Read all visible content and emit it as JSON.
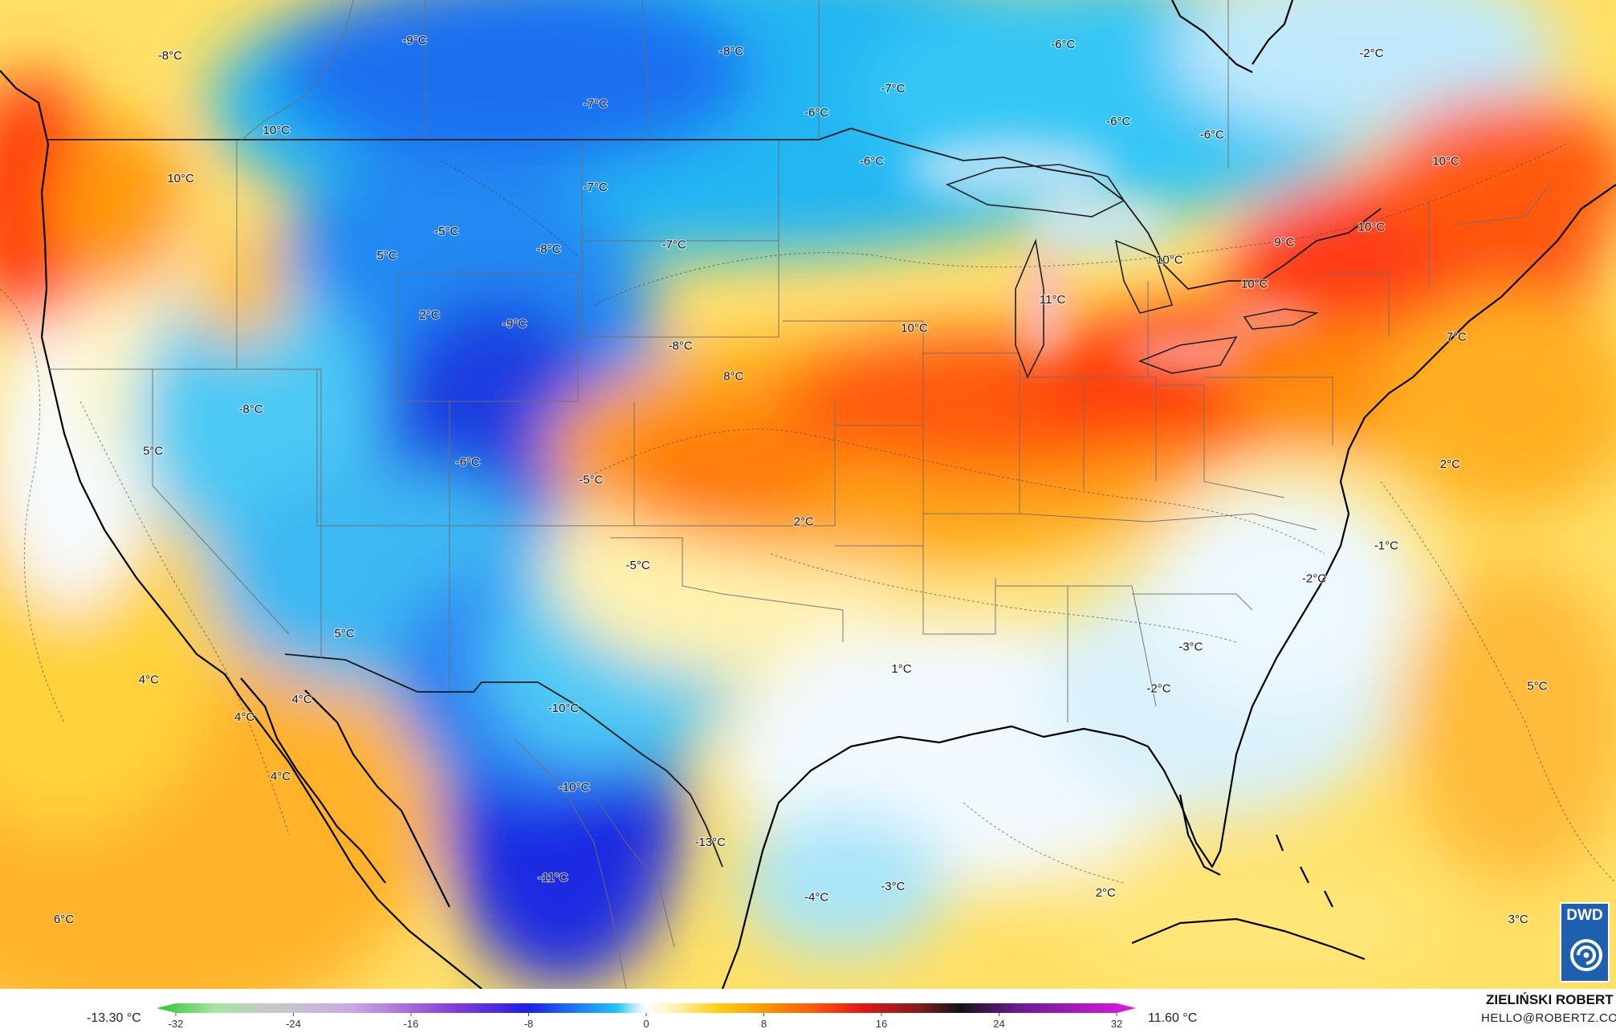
{
  "map": {
    "region": "contiguous-united-states-and-surroundings",
    "temperature_labels": [
      {
        "text": "-9°C",
        "lon": -116.5,
        "lat": 50.5
      },
      {
        "text": "-8°C",
        "lon": -128.0,
        "lat": 49.8
      },
      {
        "text": "-8°C",
        "lon": -101.6,
        "lat": 50.0
      },
      {
        "text": "-6°C",
        "lon": -86.0,
        "lat": 50.3
      },
      {
        "text": "-2°C",
        "lon": -71.5,
        "lat": 49.9
      },
      {
        "text": "-7°C",
        "lon": -94.0,
        "lat": 48.3
      },
      {
        "text": "-6°C",
        "lon": -97.6,
        "lat": 47.2
      },
      {
        "text": "-7°C",
        "lon": -108.0,
        "lat": 47.6
      },
      {
        "text": "-6°C",
        "lon": -79.0,
        "lat": 46.2
      },
      {
        "text": "-6°C",
        "lon": -83.4,
        "lat": 46.8
      },
      {
        "text": "10°C",
        "lon": -123.0,
        "lat": 46.4
      },
      {
        "text": "10°C",
        "lon": -127.5,
        "lat": 44.2
      },
      {
        "text": "-6°C",
        "lon": -95.0,
        "lat": 45.0
      },
      {
        "text": "10°C",
        "lon": -68.0,
        "lat": 45.0
      },
      {
        "text": "-7°C",
        "lon": -108.0,
        "lat": 43.8
      },
      {
        "text": "-5°C",
        "lon": -115.0,
        "lat": 41.8
      },
      {
        "text": "5°C",
        "lon": -117.8,
        "lat": 40.7
      },
      {
        "text": "-8°C",
        "lon": -110.2,
        "lat": 41.0
      },
      {
        "text": "-7°C",
        "lon": -104.3,
        "lat": 41.2
      },
      {
        "text": "10°C",
        "lon": -71.5,
        "lat": 42.0
      },
      {
        "text": "9°C",
        "lon": -75.6,
        "lat": 41.3
      },
      {
        "text": "10°C",
        "lon": -81.0,
        "lat": 40.5
      },
      {
        "text": "10°C",
        "lon": -77.0,
        "lat": 39.4
      },
      {
        "text": "11°C",
        "lon": -86.5,
        "lat": 38.7
      },
      {
        "text": "2°C",
        "lon": -115.8,
        "lat": 38.0
      },
      {
        "text": "-9°C",
        "lon": -111.8,
        "lat": 37.6
      },
      {
        "text": "10°C",
        "lon": -93.0,
        "lat": 37.4
      },
      {
        "text": "-8°C",
        "lon": -104.0,
        "lat": 36.6
      },
      {
        "text": "7°C",
        "lon": -67.5,
        "lat": 37.0
      },
      {
        "text": "8°C",
        "lon": -101.5,
        "lat": 35.2
      },
      {
        "text": "-8°C",
        "lon": -124.2,
        "lat": 33.7
      },
      {
        "text": "5°C",
        "lon": -128.8,
        "lat": 31.8
      },
      {
        "text": "-6°C",
        "lon": -114.0,
        "lat": 31.3
      },
      {
        "text": "-5°C",
        "lon": -108.2,
        "lat": 30.5
      },
      {
        "text": "2°C",
        "lon": -67.8,
        "lat": 31.2
      },
      {
        "text": "2°C",
        "lon": -98.2,
        "lat": 28.6
      },
      {
        "text": "-5°C",
        "lon": -106.0,
        "lat": 26.6
      },
      {
        "text": "-1°C",
        "lon": -70.8,
        "lat": 27.5
      },
      {
        "text": "-2°C",
        "lon": -74.2,
        "lat": 26.0
      },
      {
        "text": "5°C",
        "lon": -119.8,
        "lat": 23.5
      },
      {
        "text": "1°C",
        "lon": -93.6,
        "lat": 21.9
      },
      {
        "text": "-3°C",
        "lon": -80.0,
        "lat": 22.9
      },
      {
        "text": "4°C",
        "lon": -129.0,
        "lat": 21.4
      },
      {
        "text": "-2°C",
        "lon": -81.5,
        "lat": 21.0
      },
      {
        "text": "4°C",
        "lon": -121.8,
        "lat": 20.5
      },
      {
        "text": "5°C",
        "lon": -63.7,
        "lat": 21.1
      },
      {
        "text": "4°C",
        "lon": -124.5,
        "lat": 19.7
      },
      {
        "text": "-10°C",
        "lon": -109.5,
        "lat": 20.1
      },
      {
        "text": "4°C",
        "lon": -122.8,
        "lat": 17.0
      },
      {
        "text": "-10°C",
        "lon": -109.0,
        "lat": 16.5
      },
      {
        "text": "-13°C",
        "lon": -102.6,
        "lat": 14.0
      },
      {
        "text": "-11°C",
        "lon": -110.0,
        "lat": 12.4
      },
      {
        "text": "2°C",
        "lon": -84.0,
        "lat": 11.7
      },
      {
        "text": "-4°C",
        "lon": -97.6,
        "lat": 11.5
      },
      {
        "text": "-3°C",
        "lon": -94.0,
        "lat": 12.0
      },
      {
        "text": "6°C",
        "lon": -133.0,
        "lat": 10.5
      },
      {
        "text": "3°C",
        "lon": -64.6,
        "lat": 10.5
      }
    ]
  },
  "legend": {
    "min_label": "-13.30 °C",
    "max_label": "11.60 °C",
    "scale_min": -32,
    "scale_max": 32,
    "ticks": [
      "-32",
      "-24",
      "-16",
      "-8",
      "0",
      "8",
      "16",
      "24",
      "32"
    ],
    "colors": {
      "green": "#2dc52d",
      "light_green": "#a6e4a6",
      "grey": "#c8c8c8",
      "lavender": "#c9a8e4",
      "purple": "#8a3fd2",
      "deep_blue": "#1b1ee6",
      "blue": "#1f7cf2",
      "sky": "#21c3f5",
      "pale_blue": "#c6eefa",
      "white": "#ffffff",
      "pale_yellow": "#fff2b0",
      "yellow": "#ffd31a",
      "orange": "#ff9800",
      "red_orange": "#ff5a0c",
      "red": "#e01a1a",
      "dark_red": "#7a1e1e",
      "black": "#141414",
      "dark_purple": "#6a1a8f",
      "magenta": "#e01be0"
    }
  },
  "author": {
    "name": "ZIELIŃSKI ROBERT",
    "email": "HELLO@ROBERTZ.CO"
  },
  "logo": {
    "text": "DWD"
  }
}
